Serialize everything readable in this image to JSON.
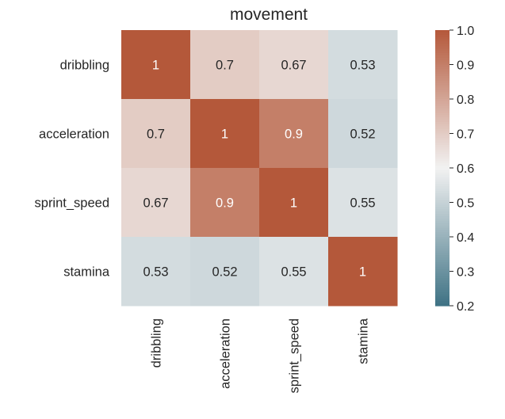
{
  "chart_data": {
    "type": "heatmap",
    "title": "movement",
    "xlabel": "",
    "ylabel": "",
    "rows": [
      "dribbling",
      "acceleration",
      "sprint_speed",
      "stamina"
    ],
    "columns": [
      "dribbling",
      "acceleration",
      "sprint_speed",
      "stamina"
    ],
    "values": [
      [
        1,
        0.7,
        0.67,
        0.53
      ],
      [
        0.7,
        1,
        0.9,
        0.52
      ],
      [
        0.67,
        0.9,
        1,
        0.55
      ],
      [
        0.53,
        0.52,
        0.55,
        1
      ]
    ],
    "value_labels": [
      [
        "1",
        "0.7",
        "0.67",
        "0.53"
      ],
      [
        "0.7",
        "1",
        "0.9",
        "0.52"
      ],
      [
        "0.67",
        "0.9",
        "1",
        "0.55"
      ],
      [
        "0.53",
        "0.52",
        "0.55",
        "1"
      ]
    ],
    "colorbar": {
      "vmin": 0.2,
      "vmax": 1.0,
      "ticks": [
        "0.2",
        "0.3",
        "0.4",
        "0.5",
        "0.6",
        "0.7",
        "0.8",
        "0.9",
        "1.0"
      ],
      "colors": {
        "low": "#3f7284",
        "mid": "#f2f2f2",
        "high": "#b4583a"
      }
    },
    "grid": false,
    "legend": "colorbar-right"
  }
}
